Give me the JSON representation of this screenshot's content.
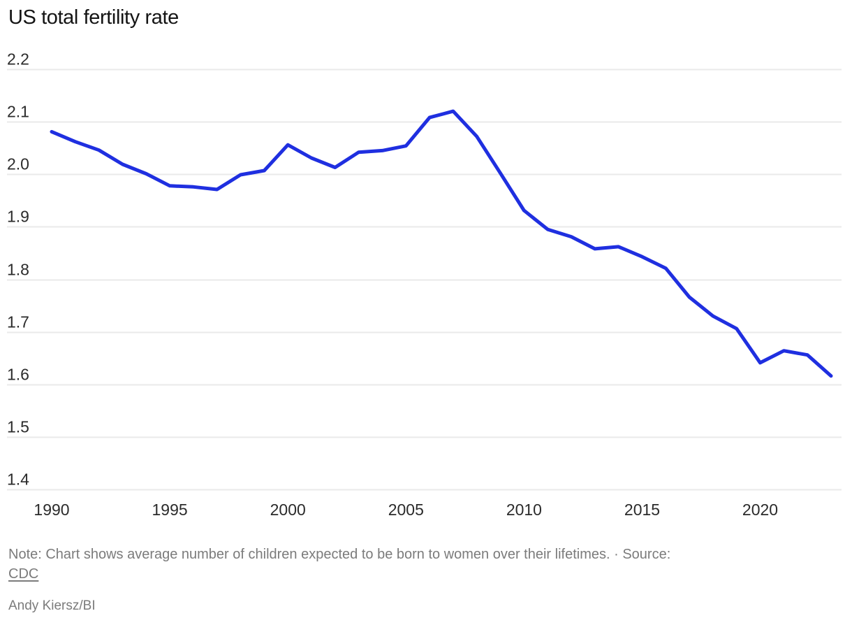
{
  "header": {
    "title": "US total fertility rate"
  },
  "chart_data": {
    "type": "line",
    "title": "US total fertility rate",
    "x": [
      1990,
      1991,
      1992,
      1993,
      1994,
      1995,
      1996,
      1997,
      1998,
      1999,
      2000,
      2001,
      2002,
      2003,
      2004,
      2005,
      2006,
      2007,
      2008,
      2009,
      2010,
      2011,
      2012,
      2013,
      2014,
      2015,
      2016,
      2017,
      2018,
      2019,
      2020,
      2021,
      2022,
      2023
    ],
    "series": [
      {
        "name": "US total fertility rate",
        "values": [
          2.081,
          2.062,
          2.046,
          2.019,
          2.001,
          1.978,
          1.976,
          1.971,
          1.999,
          2.007,
          2.056,
          2.031,
          2.013,
          2.042,
          2.045,
          2.054,
          2.108,
          2.12,
          2.072,
          2.002,
          1.931,
          1.895,
          1.881,
          1.858,
          1.862,
          1.843,
          1.821,
          1.766,
          1.73,
          1.706,
          1.641,
          1.664,
          1.656,
          1.616
        ]
      }
    ],
    "xlabel": "",
    "ylabel": "",
    "xlim": [
      1990,
      2023
    ],
    "ylim": [
      1.4,
      2.2
    ],
    "xtick_labels": [
      "1990",
      "1995",
      "2000",
      "2005",
      "2010",
      "2015",
      "2020"
    ],
    "xtick_values": [
      1990,
      1995,
      2000,
      2005,
      2010,
      2015,
      2020
    ],
    "ytick_labels": [
      "2.2",
      "2.1",
      "2.0",
      "1.9",
      "1.8",
      "1.7",
      "1.6",
      "1.5",
      "1.4"
    ],
    "ytick_values": [
      2.2,
      2.1,
      2.0,
      1.9,
      1.8,
      1.7,
      1.6,
      1.5,
      1.4
    ],
    "grid": "horizontal",
    "legend": "none",
    "line_color": "#1f2fe0",
    "grid_color": "#eaeaea"
  },
  "note": {
    "line1": "Note: Chart shows average number of children expected to be born to women over their lifetimes. · Source:",
    "source_link": "CDC"
  },
  "credit": {
    "text": "Andy Kiersz/BI"
  }
}
